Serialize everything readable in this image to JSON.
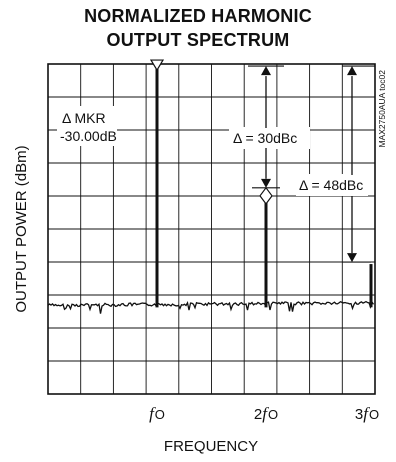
{
  "chart_data": {
    "type": "line",
    "title_lines": [
      "NORMALIZED HARMONIC",
      "OUTPUT SPECTRUM"
    ],
    "xlabel": "FREQUENCY",
    "ylabel": "OUTPUT POWER (dBm)",
    "watermark": "MAX2750AUA toc02",
    "x_ticks": [
      {
        "main": "f",
        "sub": "O",
        "prefix": "",
        "at": 1
      },
      {
        "main": "f",
        "sub": "O",
        "prefix": "2",
        "at": 2
      },
      {
        "main": "f",
        "sub": "O",
        "prefix": "3",
        "at": 3
      }
    ],
    "xlim": [
      0,
      3
    ],
    "ylim": [
      -80,
      0
    ],
    "grid": true,
    "grid_divisions": {
      "x": 10,
      "y": 10
    },
    "series": [
      {
        "values": [
          {
            "x": 1.0,
            "y": -0.5
          },
          {
            "x": 2.0,
            "y": -30.5
          },
          {
            "x": 3.0,
            "y": -48.5
          }
        ]
      }
    ],
    "noise_floor_y": -58.5,
    "annotations": [
      {
        "id": "mkr",
        "lines": [
          "Δ MKR",
          "-30.00dB"
        ]
      },
      {
        "id": "d30",
        "text": "Δ = 30dBc"
      },
      {
        "id": "d48",
        "text": "Δ = 48dBc"
      }
    ],
    "colors": {
      "trace": "#111111",
      "grid": "#111111",
      "background": "#ffffff"
    }
  }
}
